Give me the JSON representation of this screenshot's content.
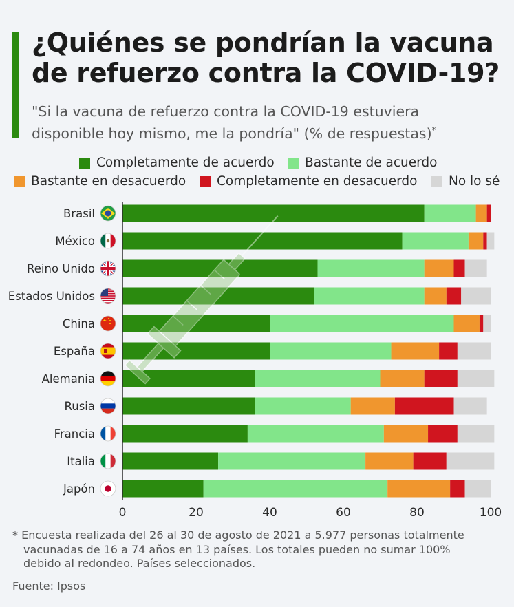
{
  "title_line1": "¿Quiénes se pondrían la vacuna",
  "title_line2": "de refuerzo contra la COVID-19?",
  "subtitle_line1": "\"Si la vacuna de refuerzo contra la COVID-19 estuviera",
  "subtitle_line2": "disponible hoy mismo, me la pondría\" (% de respuestas)",
  "subtitle_mark": "*",
  "footnote_line1": "* Encuesta realizada del 26 al 30 de agosto de 2021 a 5.977 personas totalmente",
  "footnote_line2": "vacunadas de 16 a 74 años en 13 países. Los totales pueden no sumar 100%",
  "footnote_line3": "debido al redondeo. Países seleccionados.",
  "source": "Fuente: Ipsos",
  "colors": {
    "accent": "#2b8a0f",
    "completely_agree": "#2b8a0f",
    "somewhat_agree": "#82e58a",
    "somewhat_disagree": "#f0962e",
    "completely_disagree": "#d0151f",
    "dont_know": "#d6d6d6"
  },
  "chart_data": {
    "type": "bar",
    "orientation": "horizontal",
    "stacked": true,
    "categories": [
      "Brasil",
      "México",
      "Reino Unido",
      "Estados Unidos",
      "China",
      "España",
      "Alemania",
      "Rusia",
      "Francia",
      "Italia",
      "Japón"
    ],
    "flags": [
      "brazil-flag",
      "mexico-flag",
      "uk-flag",
      "usa-flag",
      "china-flag",
      "spain-flag",
      "germany-flag",
      "russia-flag",
      "france-flag",
      "italy-flag",
      "japan-flag"
    ],
    "series": [
      {
        "name": "Completamente de acuerdo",
        "color": "#2b8a0f",
        "values": [
          82,
          76,
          53,
          52,
          40,
          40,
          36,
          36,
          34,
          26,
          22
        ]
      },
      {
        "name": "Bastante de acuerdo",
        "color": "#82e58a",
        "values": [
          14,
          18,
          29,
          30,
          50,
          33,
          34,
          26,
          37,
          40,
          50
        ]
      },
      {
        "name": "Bastante en desacuerdo",
        "color": "#f0962e",
        "values": [
          3,
          4,
          8,
          6,
          7,
          13,
          12,
          12,
          12,
          13,
          17
        ]
      },
      {
        "name": "Completamente en desacuerdo",
        "color": "#d0151f",
        "values": [
          1,
          1,
          3,
          4,
          1,
          5,
          9,
          16,
          8,
          9,
          4
        ]
      },
      {
        "name": "No lo sé",
        "color": "#d6d6d6",
        "values": [
          0,
          2,
          6,
          8,
          2,
          9,
          10,
          9,
          10,
          13,
          7
        ]
      }
    ],
    "xlim": [
      0,
      100
    ],
    "xticks": [
      0,
      20,
      40,
      60,
      80,
      100
    ],
    "grid": false,
    "legend_position": "top"
  }
}
